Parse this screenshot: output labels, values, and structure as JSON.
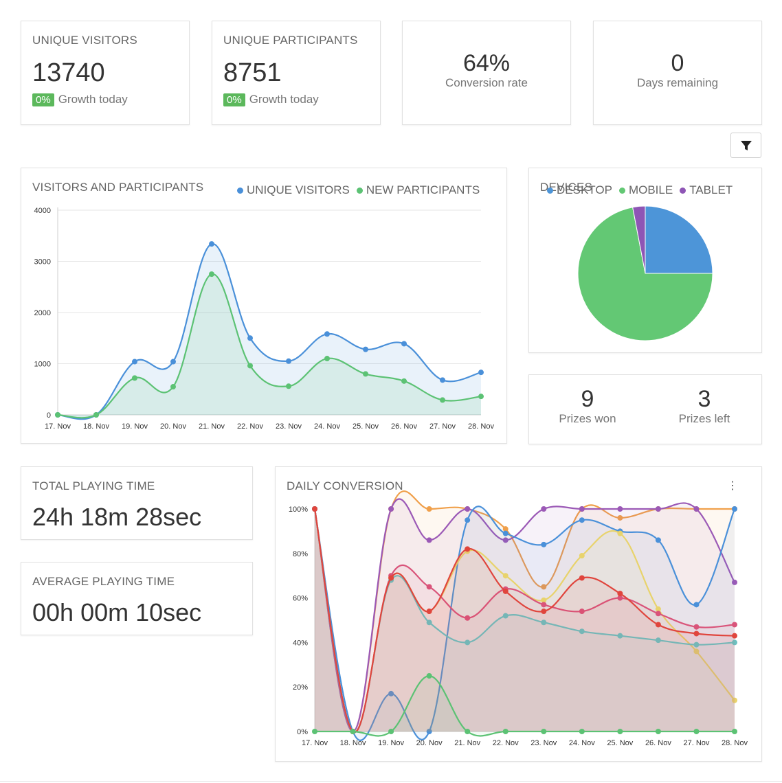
{
  "stats": {
    "unique_visitors": {
      "label": "UNIQUE VISITORS",
      "value": "13740",
      "growth_badge": "0%",
      "growth_text": "Growth today"
    },
    "unique_participants": {
      "label": "UNIQUE PARTICIPANTS",
      "value": "8751",
      "growth_badge": "0%",
      "growth_text": "Growth today"
    },
    "conversion": {
      "value": "64%",
      "label": "Conversion rate"
    },
    "days": {
      "value": "0",
      "label": "Days remaining"
    }
  },
  "toolbar": {
    "filter_icon": "filter-icon"
  },
  "prizes": {
    "won_value": "9",
    "won_label": "Prizes won",
    "left_value": "3",
    "left_label": "Prizes left"
  },
  "playing": {
    "total_label": "TOTAL PLAYING TIME",
    "total_value": "24h 18m 28sec",
    "average_label": "AVERAGE PLAYING TIME",
    "average_value": "00h 00m 10sec"
  },
  "chart_data": [
    {
      "type": "area",
      "title": "VISITORS AND PARTICIPANTS",
      "categories": [
        "17. Nov",
        "18. Nov",
        "19. Nov",
        "20. Nov",
        "21. Nov",
        "22. Nov",
        "23. Nov",
        "24. Nov",
        "25. Nov",
        "26. Nov",
        "27. Nov",
        "28. Nov"
      ],
      "ylim": [
        0,
        4000
      ],
      "yticks": [
        "0",
        "1000",
        "2000",
        "3000",
        "4000"
      ],
      "grid": true,
      "legend": "top-right",
      "series": [
        {
          "name": "UNIQUE VISITORS",
          "color": "#4a90d9",
          "values": [
            0,
            0,
            1040,
            1040,
            3340,
            1500,
            1050,
            1580,
            1280,
            1390,
            680,
            830
          ]
        },
        {
          "name": "NEW PARTICIPANTS",
          "color": "#5cc274",
          "values": [
            0,
            0,
            720,
            550,
            2750,
            960,
            560,
            1100,
            800,
            660,
            290,
            360
          ]
        }
      ]
    },
    {
      "type": "pie",
      "title": "DEVICES",
      "legend": "top",
      "slices": [
        {
          "name": "DESKTOP",
          "value": 25,
          "color": "#4d95d8"
        },
        {
          "name": "MOBILE",
          "value": 72,
          "color": "#63c874"
        },
        {
          "name": "TABLET",
          "value": 3,
          "color": "#8e55b5"
        }
      ]
    },
    {
      "type": "area",
      "title": "DAILY CONVERSION",
      "categories": [
        "17. Nov",
        "18. Nov",
        "19. Nov",
        "20. Nov",
        "21. Nov",
        "22. Nov",
        "23. Nov",
        "24. Nov",
        "25. Nov",
        "26. Nov",
        "27. Nov",
        "28. Nov"
      ],
      "ylim": [
        0,
        100
      ],
      "yticks": [
        "0%",
        "20%",
        "40%",
        "60%",
        "80%",
        "100%"
      ],
      "grid": false,
      "series": [
        {
          "color": "#f0a04b",
          "values": [
            100,
            0,
            100,
            100,
            100,
            91,
            65,
            100,
            96,
            100,
            100,
            100
          ]
        },
        {
          "color": "#9b59b6",
          "values": [
            100,
            0,
            100,
            86,
            100,
            86,
            100,
            100,
            100,
            100,
            100,
            67
          ]
        },
        {
          "color": "#4a90d9",
          "values": [
            100,
            0,
            17,
            0,
            95,
            89,
            84,
            95,
            90,
            86,
            57,
            100
          ]
        },
        {
          "color": "#e8d36c",
          "values": [
            100,
            0,
            69,
            54,
            81,
            70,
            59,
            79,
            89,
            55,
            36,
            14
          ]
        },
        {
          "color": "#d9547a",
          "values": [
            100,
            0,
            70,
            65,
            51,
            64,
            57,
            54,
            60,
            53,
            47,
            48
          ]
        },
        {
          "color": "#6cc1c1",
          "values": [
            100,
            0,
            68,
            49,
            40,
            52,
            49,
            45,
            43,
            41,
            39,
            40
          ]
        },
        {
          "color": "#e0453d",
          "values": [
            100,
            0,
            69,
            54,
            82,
            63,
            54,
            69,
            62,
            48,
            44,
            43
          ]
        },
        {
          "color": "#5cc274",
          "values": [
            0,
            0,
            0,
            25,
            0,
            0,
            0,
            0,
            0,
            0,
            0,
            0
          ]
        }
      ]
    }
  ]
}
